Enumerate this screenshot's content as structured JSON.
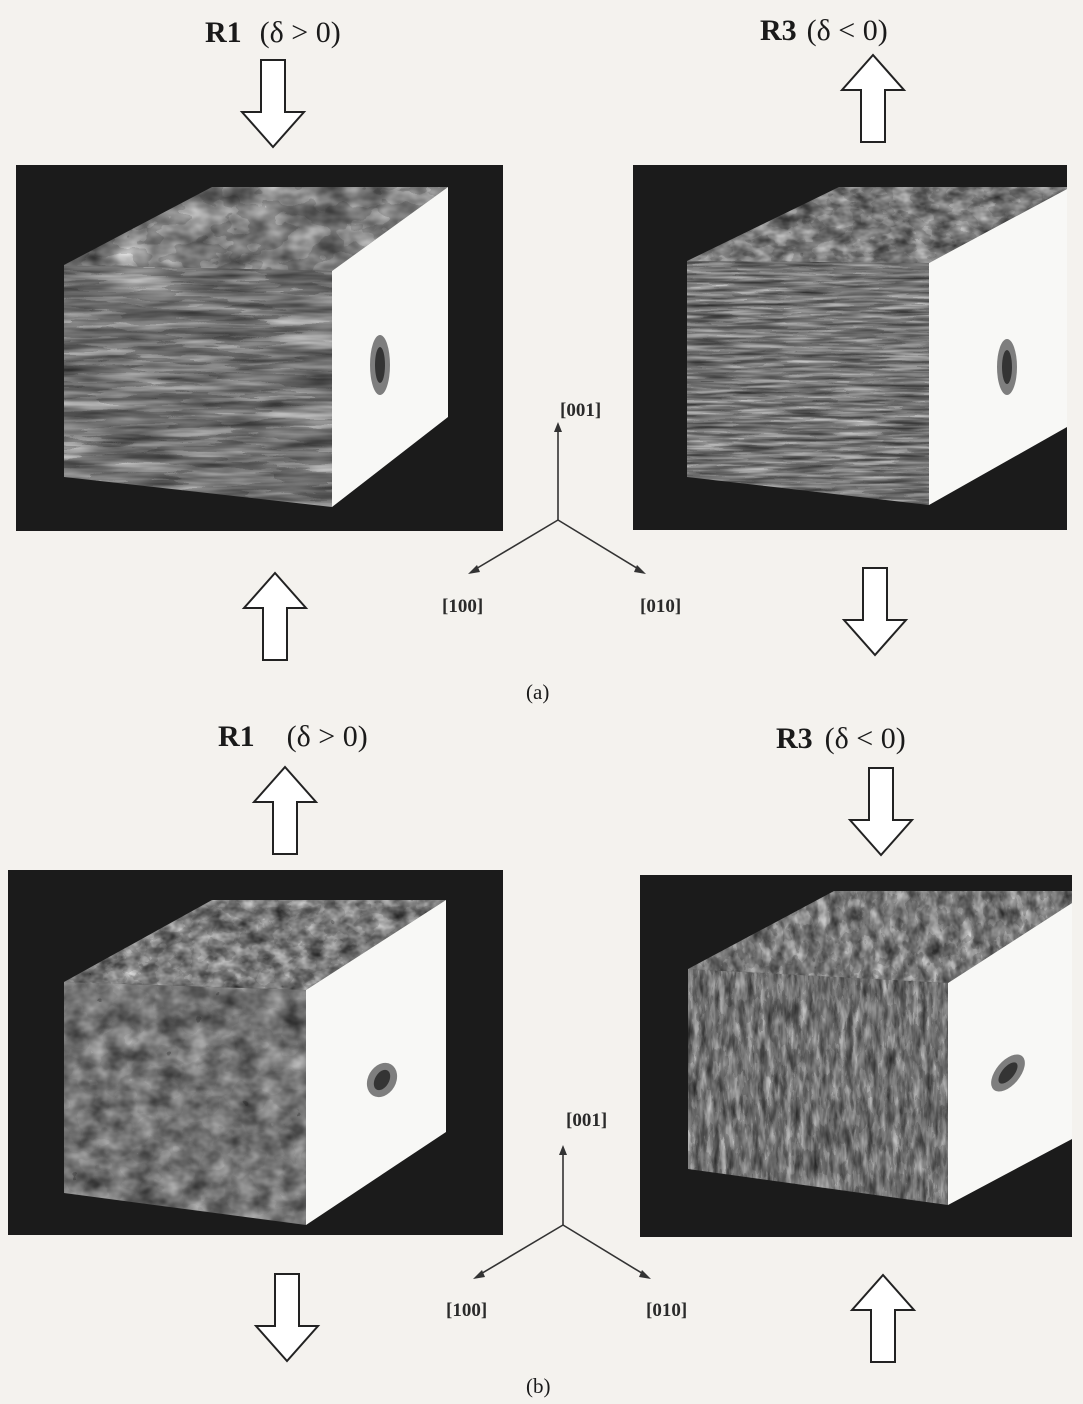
{
  "figure": {
    "part_a": {
      "caption": "(a)",
      "left": {
        "region": "R1",
        "condition": "(δ > 0)",
        "arrow_top": "down",
        "arrow_bottom": "up"
      },
      "right": {
        "region": "R3",
        "condition": "(δ < 0)",
        "arrow_top": "up",
        "arrow_bottom": "down"
      }
    },
    "part_b": {
      "caption": "(b)",
      "left": {
        "region": "R1",
        "condition": "(δ > 0)",
        "arrow_top": "up",
        "arrow_bottom": "down"
      },
      "right": {
        "region": "R3",
        "condition": "(δ < 0)",
        "arrow_top": "down",
        "arrow_bottom": "up"
      }
    },
    "axes": {
      "z": "[001]",
      "x": "[100]",
      "y": "[010]"
    }
  }
}
